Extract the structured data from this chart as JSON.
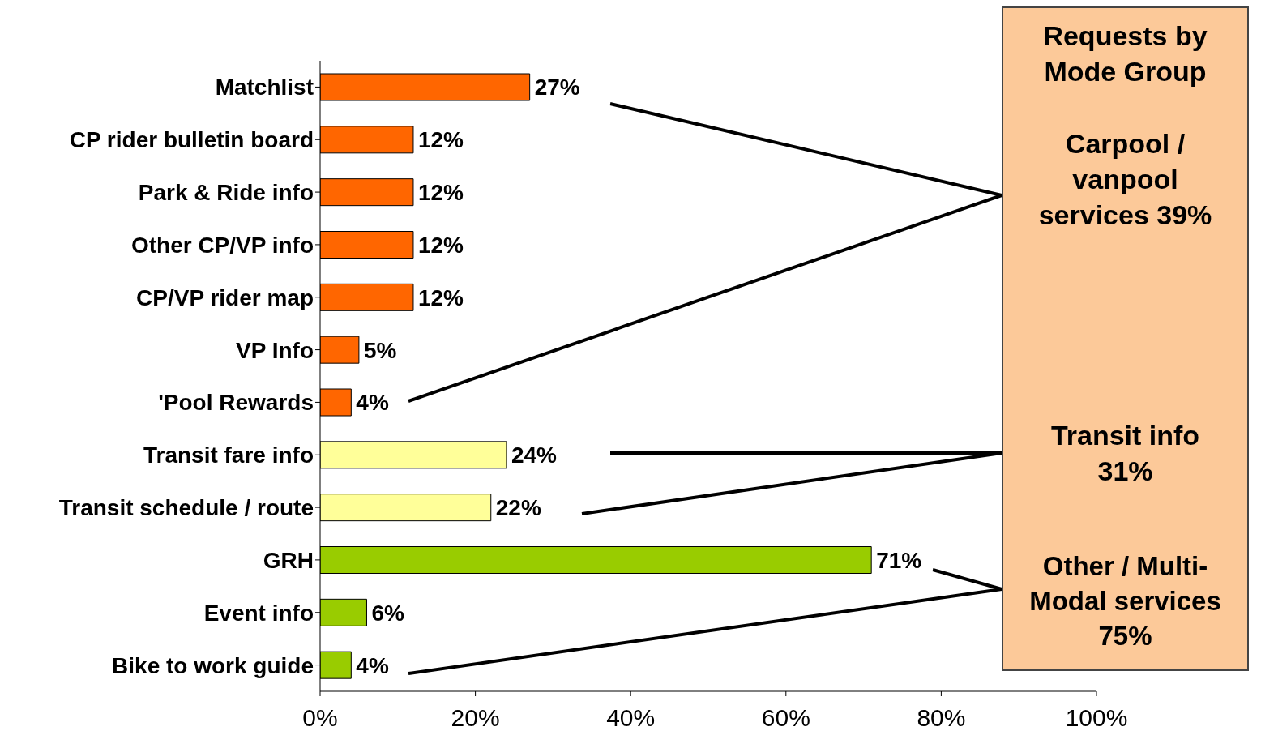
{
  "chart_data": {
    "type": "bar",
    "orientation": "horizontal",
    "categories": [
      "Matchlist",
      "CP rider bulletin board",
      "Park & Ride info",
      "Other CP/VP info",
      "CP/VP rider map",
      "VP Info",
      "'Pool Rewards",
      "Transit fare info",
      "Transit schedule / route",
      "GRH",
      "Event info",
      "Bike to work guide"
    ],
    "values": [
      27,
      12,
      12,
      12,
      12,
      5,
      4,
      24,
      22,
      71,
      6,
      4
    ],
    "value_labels": [
      "27%",
      "12%",
      "12%",
      "12%",
      "12%",
      "5%",
      "4%",
      "24%",
      "22%",
      "71%",
      "6%",
      "4%"
    ],
    "colors": [
      "#ff6600",
      "#ff6600",
      "#ff6600",
      "#ff6600",
      "#ff6600",
      "#ff6600",
      "#ff6600",
      "#ffff99",
      "#ffff99",
      "#99cc00",
      "#99cc00",
      "#99cc00"
    ],
    "xlim": [
      0,
      100
    ],
    "xticks": [
      {
        "value": 0,
        "label": "0%"
      },
      {
        "value": 20,
        "label": "20%"
      },
      {
        "value": 40,
        "label": "40%"
      },
      {
        "value": 60,
        "label": "60%"
      },
      {
        "value": 80,
        "label": "80%"
      },
      {
        "value": 100,
        "label": "100%"
      }
    ],
    "grid": false,
    "legend": false,
    "annotations": [
      "Requests by Mode Group",
      "Carpool / vanpool services 39%",
      "Transit info 31%",
      "Other / Multi-Modal services 75%"
    ]
  }
}
